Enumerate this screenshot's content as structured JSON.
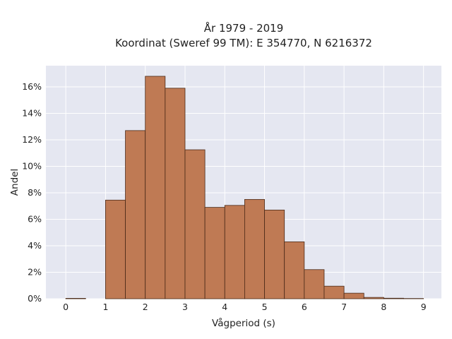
{
  "chart_data": {
    "type": "bar",
    "title_lines": [
      "År 1979 - 2019",
      "Koordinat (Sweref 99 TM): E 354770, N 6216372"
    ],
    "xlabel": "Vågperiod (s)",
    "ylabel": "Andel",
    "bin_width": 0.5,
    "bin_starts": [
      0,
      0.5,
      1,
      1.5,
      2,
      2.5,
      3,
      3.5,
      4,
      4.5,
      5,
      5.5,
      6,
      6.5,
      7,
      7.5,
      8,
      8.5
    ],
    "values": [
      0.0003,
      0,
      0.0745,
      0.127,
      0.168,
      0.159,
      0.1125,
      0.069,
      0.0705,
      0.075,
      0.067,
      0.043,
      0.022,
      0.0095,
      0.0042,
      0.001,
      0.0004,
      0.0002
    ],
    "xlim": [
      -0.5,
      9.45
    ],
    "ylim": [
      0,
      0.176
    ],
    "x_ticks": [
      0,
      1,
      2,
      3,
      4,
      5,
      6,
      7,
      8,
      9
    ],
    "x_tick_labels": [
      "0",
      "1",
      "2",
      "3",
      "4",
      "5",
      "6",
      "7",
      "8",
      "9"
    ],
    "y_ticks": [
      0,
      0.02,
      0.04,
      0.06,
      0.08,
      0.1,
      0.12,
      0.14,
      0.16
    ],
    "y_tick_labels": [
      "0%",
      "2%",
      "4%",
      "6%",
      "8%",
      "10%",
      "12%",
      "14%",
      "16%"
    ],
    "grid": true,
    "colors": {
      "bar_fill": "#bf7a54",
      "bar_edge": "#4a2a18",
      "plot_background": "#e5e7f1",
      "grid": "#ffffff"
    }
  }
}
